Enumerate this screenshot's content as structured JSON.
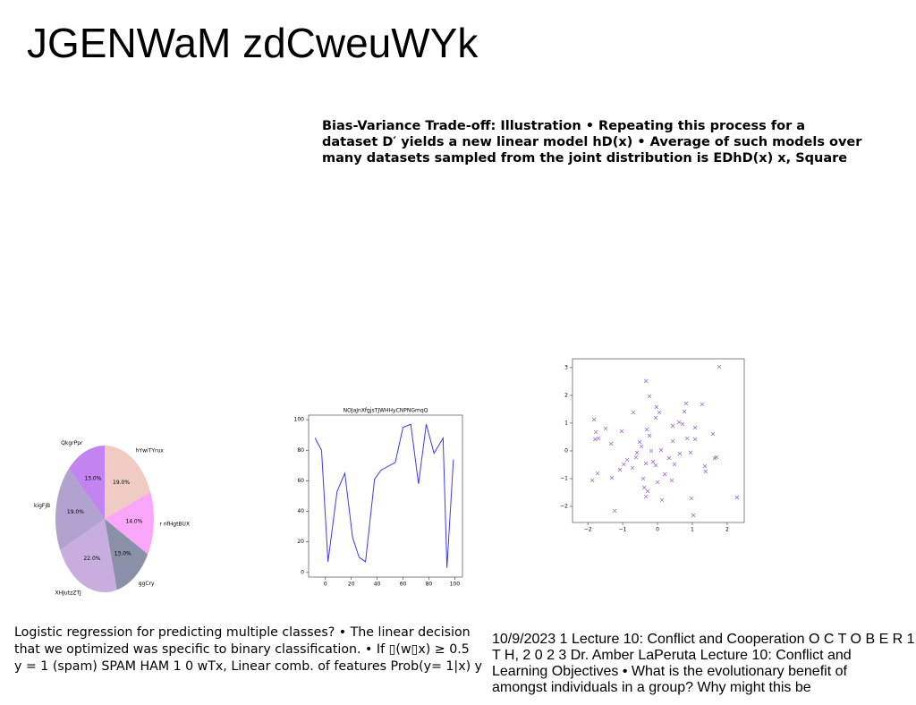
{
  "title": "JGENWaM zdCweuWYk",
  "top_text": [
    "Bias-Variance Trade-off: Illustration • Repeating this process for a",
    "dataset D′ yields a new linear model hD(x) • Average of such models over",
    "many datasets sampled from the joint distribution is EDhD(x) x, Square"
  ],
  "bottom_left_text": [
    "Logistic regression for predicting multiple classes? • The linear decision",
    "that we optimized was specific to binary classification. • If ▯(w▯x) ≥ 0.5",
    "y = 1 (spam) SPAM HAM 1 0 wTx, Linear comb. of features Prob(y= 1|x) y"
  ],
  "bottom_right_text": [
    "10/9/2023 1 Lecture 10: Conflict and Cooperation O C T O B E R 1",
    "T H, 2 0 2 3 Dr. Amber LaPeruta Lecture 10: Conflict and",
    "Learning Objectives • What is the evolutionary benefit of",
    "amongst individuals in a group? Why might this be"
  ],
  "chart_data": [
    {
      "type": "pie",
      "categories": [
        "hYwiTYrux",
        "r nfHgtBUX",
        "ggCry",
        "XHJutzZTJ",
        "kigFjB",
        "QkgrPpr"
      ],
      "values": [
        19,
        14,
        13,
        22,
        19,
        13
      ],
      "value_labels": [
        "19.0%",
        "14.0%",
        "13.0%",
        "22.0%",
        "19.0%",
        "13.0%"
      ],
      "colors": [
        "#f0cbc3",
        "#f9a6f9",
        "#8a90a8",
        "#c8aede",
        "#b2a2cf",
        "#c184f0"
      ]
    },
    {
      "type": "line",
      "title": "NOJaJnXfgjsTJWHHyCNPNGmqQ",
      "x": [
        -8,
        -3,
        2,
        9,
        15,
        21,
        26,
        31,
        38,
        43,
        54,
        60,
        66,
        72,
        78,
        84,
        91,
        94,
        99
      ],
      "values": [
        88,
        80,
        7,
        53,
        65,
        23,
        10,
        7,
        61,
        67,
        72,
        95,
        97,
        58,
        97,
        78,
        88,
        3,
        74
      ],
      "color": "#3c3cf0",
      "xlim": [
        -13,
        106
      ],
      "ylim": [
        -3,
        103
      ],
      "xticks": [
        0,
        20,
        40,
        60,
        80,
        100
      ],
      "yticks": [
        0,
        20,
        40,
        60,
        80,
        100
      ]
    },
    {
      "type": "scatter",
      "color": "#a070d0",
      "xlim": [
        -2.44,
        2.49
      ],
      "ylim": [
        -2.58,
        3.32
      ],
      "xticks": [
        {
          "value": -2,
          "label": "−2"
        },
        {
          "value": -1,
          "label": "−1"
        },
        0,
        1,
        2
      ],
      "yticks": [
        {
          "value": -2,
          "label": "−2"
        },
        {
          "value": -1,
          "label": "−1"
        },
        0,
        1,
        2,
        3
      ],
      "x": [
        1.77,
        -0.33,
        -0.23,
        -1.82,
        -1.49,
        -1.77,
        -1.79,
        -1.69,
        -1.87,
        -1.72,
        -1.33,
        -1.03,
        -0.69,
        -0.03,
        0.05,
        -0.05,
        0.82,
        1.28,
        0.62,
        0.72,
        0.44,
        1.08,
        -0.31,
        -0.23,
        1.59,
        0.85,
        1.08,
        0.44,
        -0.51,
        -0.46,
        -0.59,
        0.1,
        -0.18,
        -0.87,
        -0.62,
        -0.33,
        -0.05,
        0.33,
        0.64,
        0.95,
        0.21,
        0.41,
        0,
        -0.41,
        -1.08,
        -0.97,
        -1.31,
        -0.38,
        -0.28,
        -0.33,
        0.13,
        1.36,
        1.38,
        1.64,
        1.69,
        0.97,
        -1.23,
        1.03,
        2.28,
        0.49,
        -0.13,
        -0.72,
        0.77
      ],
      "values": [
        3.03,
        2.52,
        1.97,
        1.13,
        0.81,
        0.68,
        0.42,
        0.45,
        -1.06,
        -0.81,
        0.26,
        0.71,
        1.39,
        1.58,
        1.39,
        1.19,
        1.71,
        1.68,
        1.03,
        0.97,
        0.9,
        0.84,
        0.77,
        0.55,
        0.61,
        0.45,
        0.42,
        0.35,
        0.32,
        0.16,
        -0.06,
        0.03,
        0,
        -0.32,
        -0.23,
        -0.45,
        -0.52,
        -0.26,
        -0.1,
        -0.06,
        -0.84,
        -1.06,
        -1.13,
        -1.0,
        -0.68,
        -0.48,
        -0.97,
        -1.32,
        -1.45,
        -1.65,
        -1.77,
        -0.55,
        -0.74,
        -0.26,
        -0.23,
        -1.71,
        -2.16,
        -2.32,
        -1.68,
        -0.48,
        -0.39,
        -0.61,
        1.42
      ]
    }
  ]
}
